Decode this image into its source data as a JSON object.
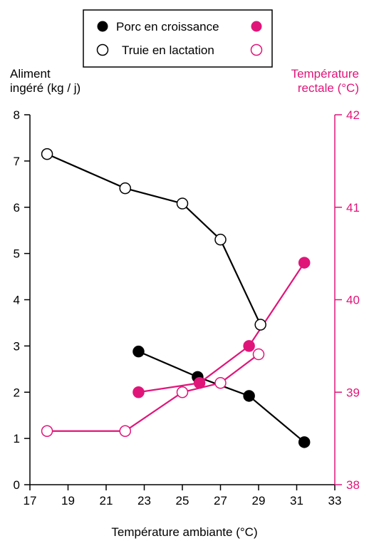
{
  "chart_data": {
    "type": "line",
    "title": "",
    "xlabel": "Température ambiante (°C)",
    "ylabel_left": [
      "Aliment",
      "ingéré (kg / j)"
    ],
    "ylabel_right": [
      "Température",
      "rectale (°C)"
    ],
    "xlim": [
      17,
      33
    ],
    "x_ticks": [
      17,
      19,
      21,
      23,
      25,
      27,
      29,
      31,
      33
    ],
    "ylim_left": [
      0,
      8
    ],
    "y_ticks_left": [
      0,
      1,
      2,
      3,
      4,
      5,
      6,
      7,
      8
    ],
    "ylim_right": [
      38,
      42
    ],
    "y_ticks_right": [
      38,
      39,
      40,
      41,
      42
    ],
    "grid": false,
    "legend_position": "top-center",
    "legend": {
      "rows": [
        {
          "label": "Porc en croissance",
          "style": "filled"
        },
        {
          "label": "Truie en lactation",
          "style": "open"
        }
      ]
    },
    "colors": {
      "feed": "#000000",
      "temperature": "#e0157a"
    },
    "series": [
      {
        "axis": "left",
        "style": "filled",
        "color": "#000000",
        "x": [
          22.7,
          25.8,
          28.5,
          31.4
        ],
        "y": [
          2.88,
          2.33,
          1.92,
          0.92
        ]
      },
      {
        "axis": "left",
        "style": "open",
        "color": "#000000",
        "x": [
          17.9,
          22.0,
          25.0,
          27.0,
          29.1
        ],
        "y": [
          7.15,
          6.41,
          6.08,
          5.3,
          3.46
        ]
      },
      {
        "axis": "right",
        "style": "filled",
        "color": "#e0157a",
        "x": [
          22.7,
          25.9,
          28.5,
          31.4
        ],
        "y": [
          39.0,
          39.1,
          39.5,
          40.4
        ]
      },
      {
        "axis": "right",
        "style": "open",
        "color": "#e0157a",
        "x": [
          17.9,
          22.0,
          25.0,
          27.0,
          29.0
        ],
        "y": [
          38.58,
          38.58,
          39.0,
          39.1,
          39.41
        ]
      }
    ]
  }
}
